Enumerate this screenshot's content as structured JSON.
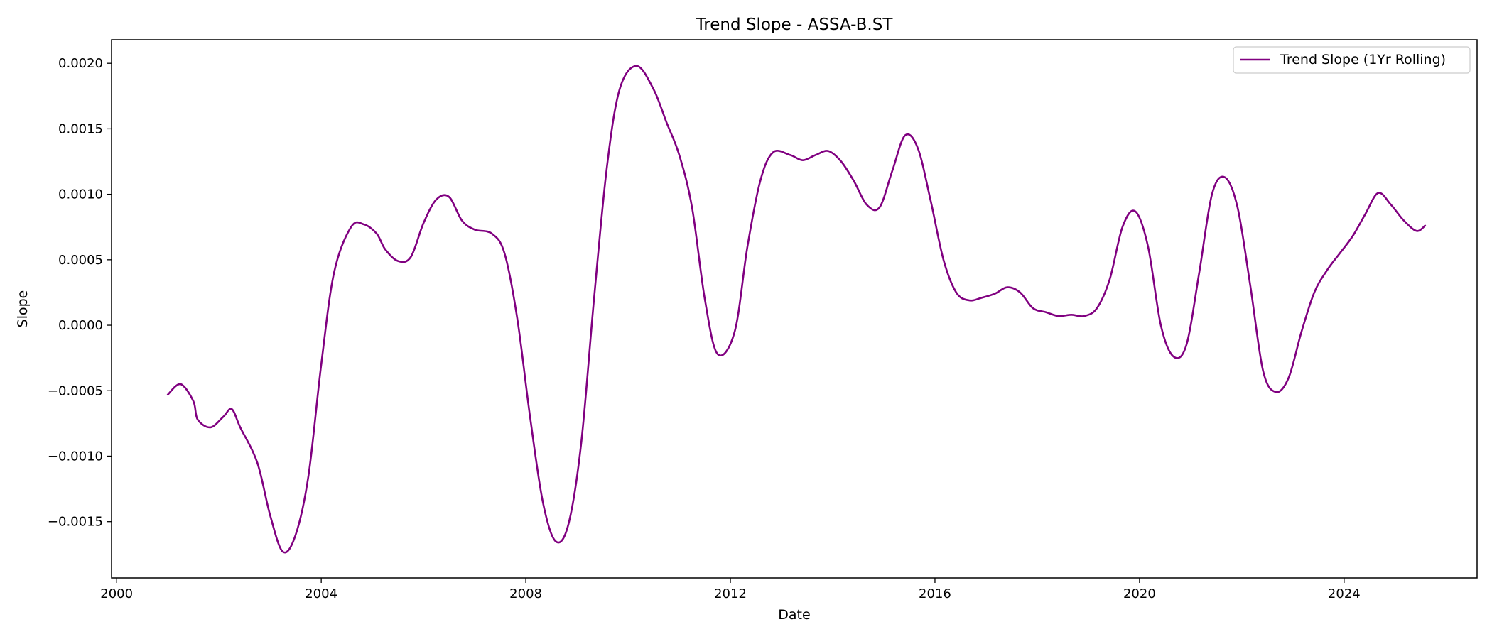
{
  "chart_data": {
    "type": "line",
    "title": "Trend Slope - ASSA-B.ST",
    "xlabel": "Date",
    "ylabel": "Slope",
    "xlim": [
      1999.9,
      2026.6
    ],
    "ylim": [
      -0.00193,
      0.00218
    ],
    "grid": false,
    "legend_position": "top-right",
    "x_ticks": [
      {
        "value": 2000,
        "label": "2000"
      },
      {
        "value": 2004,
        "label": "2004"
      },
      {
        "value": 2008,
        "label": "2008"
      },
      {
        "value": 2012,
        "label": "2012"
      },
      {
        "value": 2016,
        "label": "2016"
      },
      {
        "value": 2020,
        "label": "2020"
      },
      {
        "value": 2024,
        "label": "2024"
      }
    ],
    "y_ticks": [
      {
        "value": 0.002,
        "label": "0.0020"
      },
      {
        "value": 0.0015,
        "label": "0.0015"
      },
      {
        "value": 0.001,
        "label": "0.0010"
      },
      {
        "value": 0.0005,
        "label": "0.0005"
      },
      {
        "value": 0.0,
        "label": "0.0000"
      },
      {
        "value": -0.0005,
        "label": "−0.0005"
      },
      {
        "value": -0.001,
        "label": "−0.0010"
      },
      {
        "value": -0.0015,
        "label": "−0.0015"
      }
    ],
    "series": [
      {
        "name": "Trend Slope (1Yr Rolling)",
        "color": "#800080",
        "points": [
          [
            "2001-01",
            -0.00053
          ],
          [
            "2001-04",
            -0.00045
          ],
          [
            "2001-07",
            -0.00058
          ],
          [
            "2001-08",
            -0.00072
          ],
          [
            "2001-11",
            -0.00078
          ],
          [
            "2002-02",
            -0.0007
          ],
          [
            "2002-04",
            -0.00064
          ],
          [
            "2002-06",
            -0.00078
          ],
          [
            "2002-10",
            -0.00105
          ],
          [
            "2003-01",
            -0.00145
          ],
          [
            "2003-04",
            -0.00173
          ],
          [
            "2003-07",
            -0.0016
          ],
          [
            "2003-10",
            -0.00115
          ],
          [
            "2004-01",
            -0.0003
          ],
          [
            "2004-04",
            0.0004
          ],
          [
            "2004-08",
            0.00075
          ],
          [
            "2004-11",
            0.00077
          ],
          [
            "2005-02",
            0.0007
          ],
          [
            "2005-04",
            0.00058
          ],
          [
            "2005-07",
            0.00049
          ],
          [
            "2005-10",
            0.00052
          ],
          [
            "2006-01",
            0.00078
          ],
          [
            "2006-04",
            0.00096
          ],
          [
            "2006-07",
            0.00098
          ],
          [
            "2006-10",
            0.0008
          ],
          [
            "2007-01",
            0.00073
          ],
          [
            "2007-05",
            0.0007
          ],
          [
            "2007-08",
            0.00055
          ],
          [
            "2007-11",
            5e-05
          ],
          [
            "2008-02",
            -0.0007
          ],
          [
            "2008-05",
            -0.00135
          ],
          [
            "2008-08",
            -0.00165
          ],
          [
            "2008-11",
            -0.00152
          ],
          [
            "2009-02",
            -0.0009
          ],
          [
            "2009-05",
            0.0002
          ],
          [
            "2009-08",
            0.0012
          ],
          [
            "2009-11",
            0.0018
          ],
          [
            "2010-03",
            0.00198
          ],
          [
            "2010-07",
            0.0018
          ],
          [
            "2010-10",
            0.00155
          ],
          [
            "2011-01",
            0.0013
          ],
          [
            "2011-04",
            0.0009
          ],
          [
            "2011-07",
            0.0002
          ],
          [
            "2011-10",
            -0.00022
          ],
          [
            "2012-02",
            -5e-05
          ],
          [
            "2012-05",
            0.0006
          ],
          [
            "2012-08",
            0.0011
          ],
          [
            "2012-11",
            0.00132
          ],
          [
            "2013-03",
            0.0013
          ],
          [
            "2013-06",
            0.00126
          ],
          [
            "2013-09",
            0.0013
          ],
          [
            "2013-12",
            0.00133
          ],
          [
            "2014-03",
            0.00125
          ],
          [
            "2014-06",
            0.0011
          ],
          [
            "2014-09",
            0.00092
          ],
          [
            "2014-12",
            0.0009
          ],
          [
            "2015-03",
            0.00118
          ],
          [
            "2015-06",
            0.00145
          ],
          [
            "2015-09",
            0.00135
          ],
          [
            "2015-12",
            0.00095
          ],
          [
            "2016-03",
            0.0005
          ],
          [
            "2016-06",
            0.00025
          ],
          [
            "2016-09",
            0.00019
          ],
          [
            "2016-12",
            0.00021
          ],
          [
            "2017-03",
            0.00024
          ],
          [
            "2017-06",
            0.00029
          ],
          [
            "2017-09",
            0.00025
          ],
          [
            "2017-12",
            0.00013
          ],
          [
            "2018-03",
            0.0001
          ],
          [
            "2018-06",
            7e-05
          ],
          [
            "2018-09",
            8e-05
          ],
          [
            "2018-12",
            7e-05
          ],
          [
            "2019-03",
            0.00013
          ],
          [
            "2019-06",
            0.00035
          ],
          [
            "2019-09",
            0.00075
          ],
          [
            "2019-12",
            0.00087
          ],
          [
            "2020-03",
            0.0006
          ],
          [
            "2020-06",
            0.0
          ],
          [
            "2020-09",
            -0.00024
          ],
          [
            "2020-12",
            -0.00015
          ],
          [
            "2021-03",
            0.0004
          ],
          [
            "2021-06",
            0.001
          ],
          [
            "2021-09",
            0.00113
          ],
          [
            "2021-12",
            0.0009
          ],
          [
            "2022-03",
            0.0003
          ],
          [
            "2022-06",
            -0.00035
          ],
          [
            "2022-09",
            -0.00051
          ],
          [
            "2022-12",
            -0.0004
          ],
          [
            "2023-03",
            -5e-05
          ],
          [
            "2023-06",
            0.00025
          ],
          [
            "2023-09",
            0.00042
          ],
          [
            "2023-12",
            0.00055
          ],
          [
            "2024-03",
            0.00068
          ],
          [
            "2024-06",
            0.00085
          ],
          [
            "2024-09",
            0.00101
          ],
          [
            "2024-12",
            0.00092
          ],
          [
            "2025-03",
            0.0008
          ],
          [
            "2025-06",
            0.00072
          ],
          [
            "2025-08",
            0.00076
          ]
        ]
      }
    ]
  }
}
